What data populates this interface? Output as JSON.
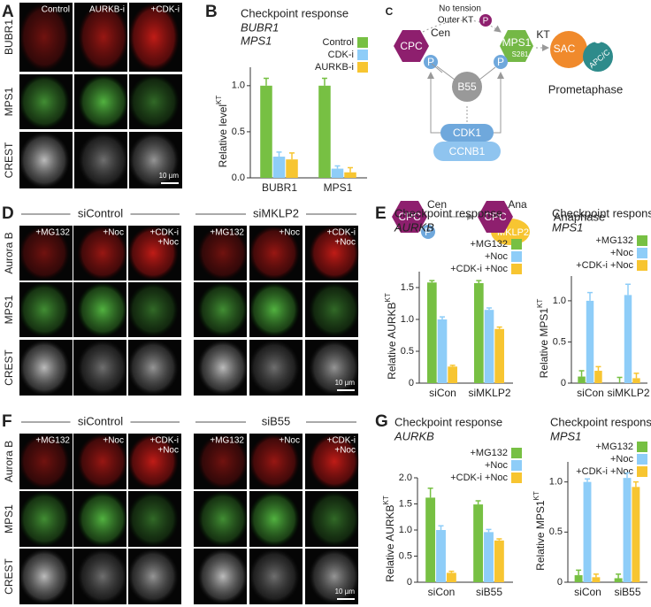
{
  "panel_a": {
    "label": "A",
    "columns": [
      "Control",
      "AURKB-i",
      "+CDK-i"
    ],
    "rows": [
      "BUBR1",
      "MPS1",
      "CREST"
    ],
    "scale_bar": "10 µm"
  },
  "panel_d": {
    "label": "D",
    "groups": [
      "siControl",
      "siMKLP2"
    ],
    "columns": [
      [
        "+MG132"
      ],
      [
        "+Noc"
      ],
      [
        "+CDK-i",
        "+Noc"
      ]
    ],
    "rows": [
      "Aurora B",
      "MPS1",
      "CREST"
    ],
    "scale_bar": "10 µm"
  },
  "panel_f": {
    "label": "F",
    "groups": [
      "siControl",
      "siB55"
    ],
    "columns": [
      [
        "+MG132"
      ],
      [
        "+Noc"
      ],
      [
        "+CDK-i",
        "+Noc"
      ]
    ],
    "rows": [
      "Aurora B",
      "MPS1",
      "CREST"
    ],
    "scale_bar": "10 µm"
  },
  "diagram": {
    "label": "C",
    "prometaphase": {
      "cpc": "CPC",
      "cen": "Cen",
      "p_left": "P",
      "p_right": "P",
      "b55": "B55",
      "mps1": "MPS1",
      "s281": "S281",
      "kt": "KT",
      "sac": "SAC",
      "apcc": "APC/C",
      "no_tension": "No tension",
      "outer_kt": "Outer KT",
      "p_outer": "P",
      "cdk1": "CDK1",
      "ccnb1": "CCNB1",
      "phase": "Prometaphase"
    },
    "anaphase": {
      "cpc_left": "CPC",
      "cen": "Cen",
      "p": "P",
      "cpc_right": "CPC",
      "ana": "Ana",
      "mklp2": "MKLP2",
      "phase": "Anaphase"
    }
  },
  "chart_data": [
    {
      "type": "bar",
      "label": "B",
      "title": "Checkpoint response",
      "subtitle": [
        "BUBR1",
        "MPS1"
      ],
      "ylabel": "Relative level",
      "ylabel_sup": "KT",
      "categories": [
        "BUBR1",
        "MPS1"
      ],
      "series": [
        {
          "name": "Control",
          "color": "#77c043",
          "values": [
            1.0,
            1.0
          ],
          "errors": [
            0.08,
            0.08
          ]
        },
        {
          "name": "CDK-i",
          "color": "#8ecdf8",
          "values": [
            0.23,
            0.1
          ],
          "errors": [
            0.05,
            0.03
          ]
        },
        {
          "name": "AURKB-i",
          "color": "#f7c531",
          "values": [
            0.2,
            0.06
          ],
          "errors": [
            0.07,
            0.05
          ]
        }
      ],
      "ylim": [
        0,
        1.2
      ],
      "yticks": [
        {
          "value": 0,
          "label": "0.0"
        },
        {
          "value": 0.5,
          "label": "0.5"
        },
        {
          "value": 1,
          "label": "1.0"
        }
      ]
    },
    {
      "type": "bar",
      "label": "E",
      "title": "Checkpoint response",
      "subtitle": [
        "AURKB"
      ],
      "ylabel": "Relative AURKB",
      "ylabel_sup": "KT",
      "categories": [
        "siCon",
        "siMKLP2"
      ],
      "series": [
        {
          "name": "+MG132",
          "color": "#77c043",
          "values": [
            1.58,
            1.57
          ],
          "errors": [
            0.03,
            0.04
          ]
        },
        {
          "name": "+Noc",
          "color": "#8ecdf8",
          "values": [
            1.0,
            1.15
          ],
          "errors": [
            0.04,
            0.03
          ]
        },
        {
          "name": "+CDK-i +Noc",
          "color": "#f7c531",
          "values": [
            0.26,
            0.85
          ],
          "errors": [
            0.02,
            0.03
          ]
        }
      ],
      "ylim": [
        0,
        1.75
      ],
      "yticks": [
        0,
        0.5,
        {
          "value": 1,
          "label": "1.0"
        },
        1.5
      ]
    },
    {
      "type": "bar",
      "title": "Checkpoint response",
      "subtitle": [
        "MPS1"
      ],
      "ylabel": "Relative MPS1",
      "ylabel_sup": "KT",
      "categories": [
        "siCon",
        "siMKLP2"
      ],
      "series": [
        {
          "name": "+MG132",
          "color": "#77c043",
          "values": [
            0.08,
            0.0
          ],
          "errors": [
            0.07,
            0.07
          ]
        },
        {
          "name": "+Noc",
          "color": "#8ecdf8",
          "values": [
            1.0,
            1.07
          ],
          "errors": [
            0.1,
            0.13
          ]
        },
        {
          "name": "+CDK-i +Noc",
          "color": "#f7c531",
          "values": [
            0.15,
            0.06
          ],
          "errors": [
            0.05,
            0.06
          ]
        }
      ],
      "ylim": [
        0,
        1.3
      ],
      "yticks": [
        0,
        0.5,
        {
          "value": 1,
          "label": "1.0"
        }
      ]
    },
    {
      "type": "bar",
      "label": "G",
      "title": "Checkpoint response",
      "subtitle": [
        "AURKB"
      ],
      "ylabel": "Relative AURKB",
      "ylabel_sup": "KT",
      "categories": [
        "siCon",
        "siB55"
      ],
      "series": [
        {
          "name": "+MG132",
          "color": "#77c043",
          "values": [
            1.62,
            1.49
          ],
          "errors": [
            0.18,
            0.07
          ]
        },
        {
          "name": "+Noc",
          "color": "#8ecdf8",
          "values": [
            1.0,
            0.96
          ],
          "errors": [
            0.08,
            0.05
          ]
        },
        {
          "name": "+CDK-i +Noc",
          "color": "#f7c531",
          "values": [
            0.18,
            0.8
          ],
          "errors": [
            0.03,
            0.03
          ]
        }
      ],
      "ylim": [
        0,
        2.0
      ],
      "yticks": [
        0,
        0.5,
        {
          "value": 1,
          "label": "1.0"
        },
        1.5,
        {
          "value": 2,
          "label": "2.0"
        }
      ]
    },
    {
      "type": "bar",
      "title": "Checkpoint response",
      "subtitle": [
        "MPS1"
      ],
      "ylabel": "Relative MPS1",
      "ylabel_sup": "KT",
      "categories": [
        "siCon",
        "siB55"
      ],
      "series": [
        {
          "name": "+MG132",
          "color": "#77c043",
          "values": [
            0.07,
            0.04
          ],
          "errors": [
            0.05,
            0.04
          ]
        },
        {
          "name": "+Noc",
          "color": "#8ecdf8",
          "values": [
            1.0,
            1.04
          ],
          "errors": [
            0.03,
            0.05
          ]
        },
        {
          "name": "+CDK-i +Noc",
          "color": "#f7c531",
          "values": [
            0.05,
            0.95
          ],
          "errors": [
            0.03,
            0.05
          ]
        }
      ],
      "ylim": [
        0,
        1.2
      ],
      "yticks": [
        0,
        0.5,
        {
          "value": 1,
          "label": "1.0"
        }
      ]
    }
  ]
}
